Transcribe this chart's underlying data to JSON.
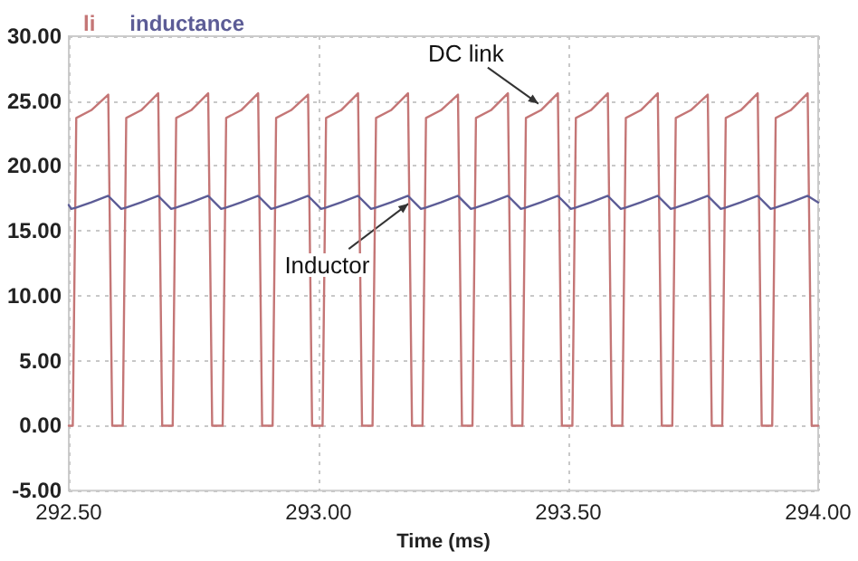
{
  "chart_data": {
    "type": "line",
    "xlabel": "Time (ms)",
    "xlim": [
      292.5,
      294.0
    ],
    "xticks": [
      {
        "value": 292.5,
        "label": "292.50"
      },
      {
        "value": 293.0,
        "label": "293.00"
      },
      {
        "value": 293.5,
        "label": "293.50"
      },
      {
        "value": 294.0,
        "label": "294.00"
      }
    ],
    "ylim": [
      -5,
      30
    ],
    "yticks": [
      {
        "value": -5,
        "label": "-5.00"
      },
      {
        "value": 0,
        "label": "0.00"
      },
      {
        "value": 5,
        "label": "5.00"
      },
      {
        "value": 10,
        "label": "10.00"
      },
      {
        "value": 15,
        "label": "15.00"
      },
      {
        "value": 20,
        "label": "20.00"
      },
      {
        "value": 25,
        "label": "25.00"
      },
      {
        "value": 30,
        "label": "30.00"
      }
    ],
    "grid": true,
    "legend": "top left",
    "marker": "none",
    "line_style": "solid",
    "annotations": [
      {
        "text": "DC link",
        "x": 293.44,
        "y": 24.8
      },
      {
        "text": "Inductor",
        "x": 293.18,
        "y": 17.1
      }
    ],
    "series": [
      {
        "name": "li",
        "color": "#c47676",
        "x": [
          292.5,
          292.508,
          292.515,
          292.545,
          292.579,
          292.587,
          292.608,
          292.615,
          292.645,
          292.679,
          292.687,
          292.708,
          292.715,
          292.745,
          292.779,
          292.787,
          292.808,
          292.815,
          292.845,
          292.879,
          292.887,
          292.908,
          292.915,
          292.945,
          292.979,
          292.987,
          293.008,
          293.015,
          293.045,
          293.079,
          293.087,
          293.108,
          293.115,
          293.145,
          293.179,
          293.187,
          293.208,
          293.215,
          293.245,
          293.279,
          293.287,
          293.308,
          293.315,
          293.345,
          293.379,
          293.387,
          293.408,
          293.415,
          293.445,
          293.479,
          293.487,
          293.508,
          293.515,
          293.545,
          293.579,
          293.587,
          293.608,
          293.615,
          293.645,
          293.679,
          293.687,
          293.708,
          293.715,
          293.745,
          293.779,
          293.787,
          293.808,
          293.815,
          293.845,
          293.879,
          293.887,
          293.908,
          293.915,
          293.945,
          293.979,
          293.987,
          294.0
        ],
        "values": [
          0,
          0,
          23.7,
          24.3,
          25.5,
          0,
          0,
          23.7,
          24.3,
          25.6,
          0,
          0,
          23.7,
          24.3,
          25.6,
          0,
          0,
          23.7,
          24.3,
          25.6,
          0,
          0,
          23.7,
          24.3,
          25.5,
          0,
          0,
          23.7,
          24.3,
          25.6,
          0,
          0,
          23.7,
          24.3,
          25.6,
          0,
          0,
          23.7,
          24.3,
          25.5,
          0,
          0,
          23.7,
          24.3,
          25.6,
          0,
          0,
          23.7,
          24.3,
          25.6,
          0,
          0,
          23.7,
          24.3,
          25.6,
          0,
          0,
          23.7,
          24.3,
          25.6,
          0,
          0,
          23.7,
          24.3,
          25.5,
          0,
          0,
          23.7,
          24.3,
          25.6,
          0,
          0,
          23.7,
          24.3,
          25.6,
          0,
          0
        ]
      },
      {
        "name": "inductance",
        "color": "#5c5c96",
        "x": [
          292.5,
          292.505,
          292.515,
          292.545,
          292.579,
          292.605,
          292.615,
          292.645,
          292.679,
          292.705,
          292.715,
          292.745,
          292.779,
          292.805,
          292.815,
          292.845,
          292.879,
          292.905,
          292.915,
          292.945,
          292.979,
          293.005,
          293.015,
          293.045,
          293.079,
          293.105,
          293.115,
          293.145,
          293.179,
          293.205,
          293.215,
          293.245,
          293.279,
          293.305,
          293.315,
          293.345,
          293.379,
          293.405,
          293.415,
          293.445,
          293.479,
          293.505,
          293.515,
          293.545,
          293.579,
          293.605,
          293.615,
          293.645,
          293.679,
          293.705,
          293.715,
          293.745,
          293.779,
          293.805,
          293.815,
          293.845,
          293.879,
          293.905,
          293.915,
          293.945,
          293.979,
          294.0
        ],
        "values": [
          17.0,
          16.7,
          16.8,
          17.2,
          17.7,
          16.7,
          16.8,
          17.2,
          17.7,
          16.7,
          16.8,
          17.2,
          17.7,
          16.7,
          16.8,
          17.2,
          17.7,
          16.7,
          16.8,
          17.2,
          17.7,
          16.7,
          16.8,
          17.2,
          17.7,
          16.7,
          16.8,
          17.2,
          17.7,
          16.7,
          16.8,
          17.2,
          17.7,
          16.7,
          16.8,
          17.2,
          17.7,
          16.7,
          16.8,
          17.2,
          17.7,
          16.7,
          16.8,
          17.2,
          17.7,
          16.7,
          16.8,
          17.2,
          17.7,
          16.7,
          16.8,
          17.2,
          17.7,
          16.7,
          16.8,
          17.2,
          17.7,
          16.7,
          16.8,
          17.2,
          17.7,
          17.2
        ]
      }
    ]
  }
}
